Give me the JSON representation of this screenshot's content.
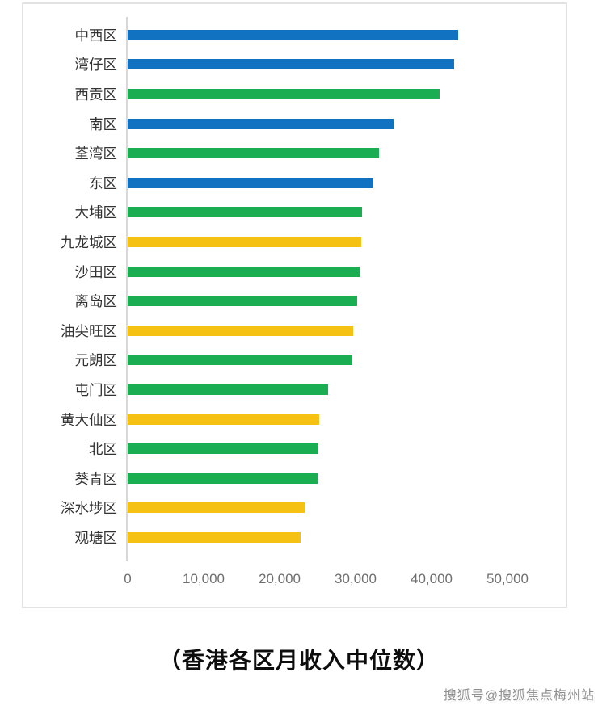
{
  "page": {
    "background": "#ffffff"
  },
  "watermark": {
    "text": "搜狐号@搜狐焦点梅州站"
  },
  "chart_data": {
    "type": "bar",
    "orientation": "horizontal",
    "title": "（香港各区月收入中位数）",
    "categories": [
      "中西区",
      "湾仔区",
      "西贡区",
      "南区",
      "荃湾区",
      "东区",
      "大埔区",
      "九龙城区",
      "沙田区",
      "离岛区",
      "油尖旺区",
      "元朗区",
      "屯门区",
      "黄大仙区",
      "北区",
      "葵青区",
      "深水埗区",
      "观塘区"
    ],
    "values": [
      43700,
      43200,
      41300,
      35200,
      33300,
      32500,
      31100,
      31000,
      30700,
      30400,
      29900,
      29800,
      26600,
      25400,
      25300,
      25200,
      23500,
      23000
    ],
    "bar_color_names": [
      "blue",
      "blue",
      "green",
      "blue",
      "green",
      "blue",
      "green",
      "yellow",
      "green",
      "green",
      "yellow",
      "green",
      "green",
      "yellow",
      "green",
      "green",
      "yellow",
      "yellow"
    ],
    "palette": {
      "blue": "#1272c2",
      "green": "#1bad52",
      "yellow": "#f5c113"
    },
    "x_axis": {
      "tick_labels": [
        "0",
        "10,000",
        "20,000",
        "30,000",
        "40,000",
        "50,000"
      ],
      "tick_values": [
        0,
        10000,
        20000,
        30000,
        40000,
        50000
      ],
      "max": 50000
    },
    "xlabel": "",
    "ylabel": "",
    "grid": false,
    "legend": false,
    "axis_line_color": "#d8d8d8",
    "tick_label_color": "#6e6e6e",
    "category_label_color": "#333333"
  }
}
